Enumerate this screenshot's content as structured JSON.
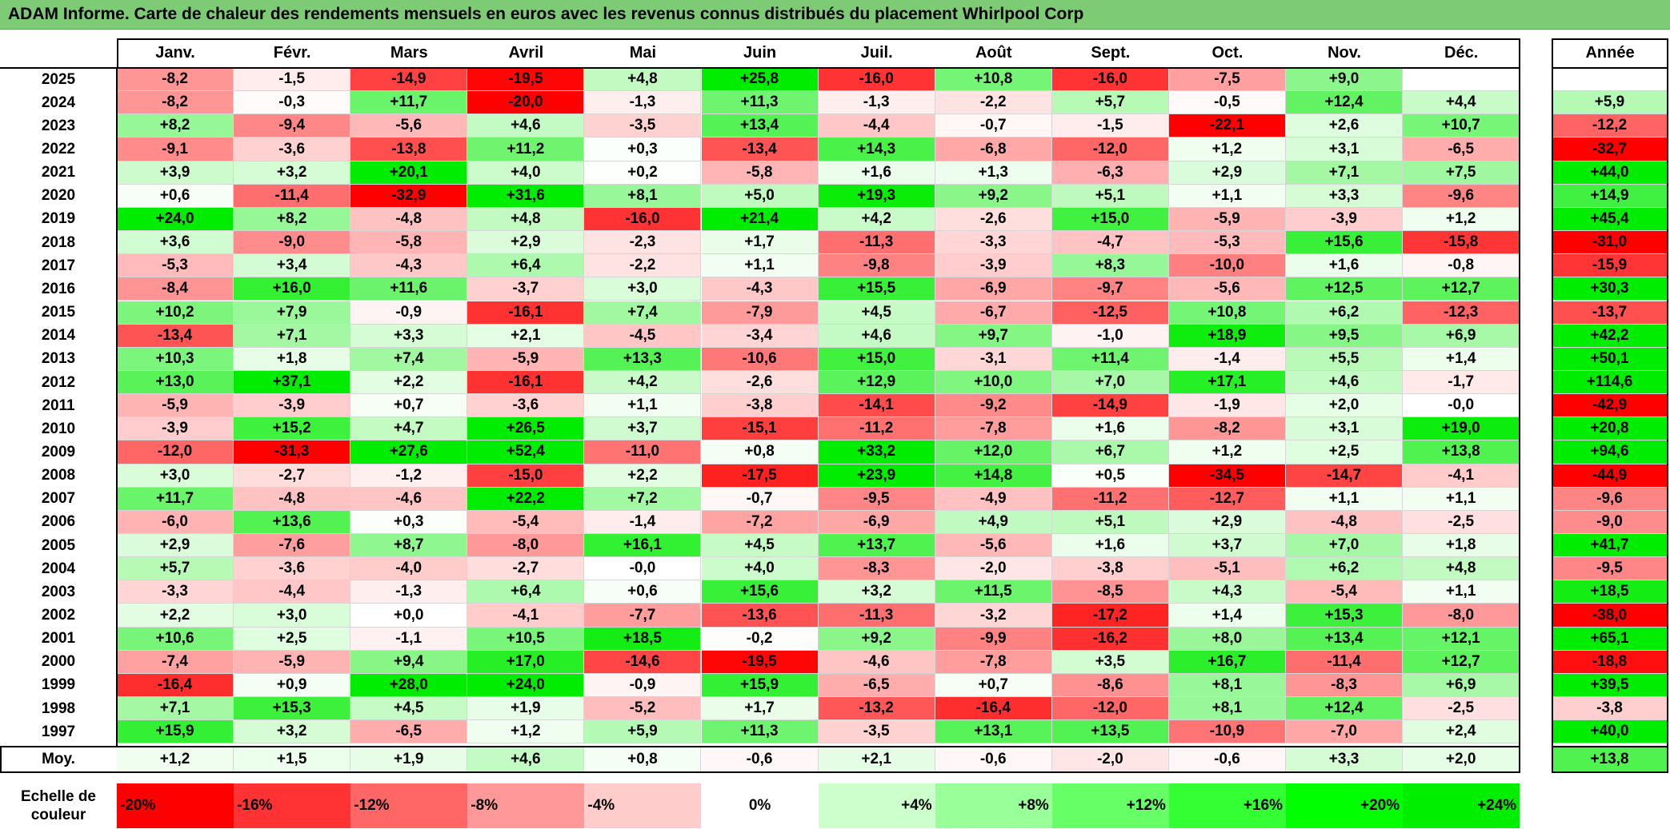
{
  "title": "ADAM Informe. Carte de chaleur des rendements mensuels en euros avec les revenus connus distribués du placement Whirlpool Corp",
  "chart_data": {
    "type": "heatmap",
    "title": "ADAM Informe. Carte de chaleur des rendements mensuels en euros avec les revenus connus distribués du placement Whirlpool Corp",
    "columns": [
      "Janv.",
      "Févr.",
      "Mars",
      "Avril",
      "Mai",
      "Juin",
      "Juil.",
      "Août",
      "Sept.",
      "Oct.",
      "Nov.",
      "Déc."
    ],
    "annual_header": "Année",
    "average_label": "Moy.",
    "rows": [
      {
        "year": "2025",
        "months": [
          "-8,2",
          "-1,5",
          "-14,9",
          "-19,5",
          "+4,8",
          "+25,8",
          "-16,0",
          "+10,8",
          "-16,0",
          "-7,5",
          "+9,0",
          ""
        ],
        "annual": ""
      },
      {
        "year": "2024",
        "months": [
          "-8,2",
          "-0,3",
          "+11,7",
          "-20,0",
          "-1,3",
          "+11,3",
          "-1,3",
          "-2,2",
          "+5,7",
          "-0,5",
          "+12,4",
          "+4,4"
        ],
        "annual": "+5,9"
      },
      {
        "year": "2023",
        "months": [
          "+8,2",
          "-9,4",
          "-5,6",
          "+4,6",
          "-3,5",
          "+13,4",
          "-4,4",
          "-0,7",
          "-1,5",
          "-22,1",
          "+2,6",
          "+10,7"
        ],
        "annual": "-12,2"
      },
      {
        "year": "2022",
        "months": [
          "-9,1",
          "-3,6",
          "-13,8",
          "+11,2",
          "+0,3",
          "-13,4",
          "+14,3",
          "-6,8",
          "-12,0",
          "+1,2",
          "+3,1",
          "-6,5"
        ],
        "annual": "-32,7"
      },
      {
        "year": "2021",
        "months": [
          "+3,9",
          "+3,2",
          "+20,1",
          "+4,0",
          "+0,2",
          "-5,8",
          "+1,6",
          "+1,3",
          "-6,3",
          "+2,9",
          "+7,1",
          "+7,5"
        ],
        "annual": "+44,0"
      },
      {
        "year": "2020",
        "months": [
          "+0,6",
          "-11,4",
          "-32,9",
          "+31,6",
          "+8,1",
          "+5,0",
          "+19,3",
          "+9,2",
          "+5,1",
          "+1,1",
          "+3,3",
          "-9,6"
        ],
        "annual": "+14,9"
      },
      {
        "year": "2019",
        "months": [
          "+24,0",
          "+8,2",
          "-4,8",
          "+4,8",
          "-16,0",
          "+21,4",
          "+4,2",
          "-2,6",
          "+15,0",
          "-5,9",
          "-3,9",
          "+1,2"
        ],
        "annual": "+45,4"
      },
      {
        "year": "2018",
        "months": [
          "+3,6",
          "-9,0",
          "-5,8",
          "+2,9",
          "-2,3",
          "+1,7",
          "-11,3",
          "-3,3",
          "-4,7",
          "-5,3",
          "+15,6",
          "-15,8"
        ],
        "annual": "-31,0"
      },
      {
        "year": "2017",
        "months": [
          "-5,3",
          "+3,4",
          "-4,3",
          "+6,4",
          "-2,2",
          "+1,1",
          "-9,8",
          "-3,9",
          "+8,3",
          "-10,0",
          "+1,6",
          "-0,8"
        ],
        "annual": "-15,9"
      },
      {
        "year": "2016",
        "months": [
          "-8,4",
          "+16,0",
          "+11,6",
          "-3,7",
          "+3,0",
          "-4,3",
          "+15,5",
          "-6,9",
          "-9,7",
          "-5,6",
          "+12,5",
          "+12,7"
        ],
        "annual": "+30,3"
      },
      {
        "year": "2015",
        "months": [
          "+10,2",
          "+7,9",
          "-0,9",
          "-16,1",
          "+7,4",
          "-7,9",
          "+4,5",
          "-6,7",
          "-12,5",
          "+10,8",
          "+6,2",
          "-12,3"
        ],
        "annual": "-13,7"
      },
      {
        "year": "2014",
        "months": [
          "-13,4",
          "+7,1",
          "+3,3",
          "+2,1",
          "-4,5",
          "-3,4",
          "+4,6",
          "+9,7",
          "-1,0",
          "+18,9",
          "+9,5",
          "+6,9"
        ],
        "annual": "+42,2"
      },
      {
        "year": "2013",
        "months": [
          "+10,3",
          "+1,8",
          "+7,4",
          "-5,9",
          "+13,3",
          "-10,6",
          "+15,0",
          "-3,1",
          "+11,4",
          "-1,4",
          "+5,5",
          "+1,4"
        ],
        "annual": "+50,1"
      },
      {
        "year": "2012",
        "months": [
          "+13,0",
          "+37,1",
          "+2,2",
          "-16,1",
          "+4,2",
          "-2,6",
          "+12,9",
          "+10,0",
          "+7,0",
          "+17,1",
          "+4,6",
          "-1,7"
        ],
        "annual": "+114,6"
      },
      {
        "year": "2011",
        "months": [
          "-5,9",
          "-3,9",
          "+0,7",
          "-3,6",
          "+1,1",
          "-3,8",
          "-14,1",
          "-9,2",
          "-14,9",
          "-1,9",
          "+2,0",
          "-0,0"
        ],
        "annual": "-42,9"
      },
      {
        "year": "2010",
        "months": [
          "-3,9",
          "+15,2",
          "+4,7",
          "+26,5",
          "+3,7",
          "-15,1",
          "-11,2",
          "-7,8",
          "+1,6",
          "-8,2",
          "+3,1",
          "+19,0"
        ],
        "annual": "+20,8"
      },
      {
        "year": "2009",
        "months": [
          "-12,0",
          "-31,3",
          "+27,6",
          "+52,4",
          "-11,0",
          "+0,8",
          "+33,2",
          "+12,0",
          "+6,7",
          "+1,2",
          "+2,5",
          "+13,8"
        ],
        "annual": "+94,6"
      },
      {
        "year": "2008",
        "months": [
          "+3,0",
          "-2,7",
          "-1,2",
          "-15,0",
          "+2,2",
          "-17,5",
          "+23,9",
          "+14,8",
          "+0,5",
          "-34,5",
          "-14,7",
          "-4,1"
        ],
        "annual": "-44,9"
      },
      {
        "year": "2007",
        "months": [
          "+11,7",
          "-4,8",
          "-4,6",
          "+22,2",
          "+7,2",
          "-0,7",
          "-9,5",
          "-4,9",
          "-11,2",
          "-12,7",
          "+1,1",
          "+1,1"
        ],
        "annual": "-9,6"
      },
      {
        "year": "2006",
        "months": [
          "-6,0",
          "+13,6",
          "+0,3",
          "-5,4",
          "-1,4",
          "-7,2",
          "-6,9",
          "+4,9",
          "+5,1",
          "+2,9",
          "-4,8",
          "-2,5"
        ],
        "annual": "-9,0"
      },
      {
        "year": "2005",
        "months": [
          "+2,9",
          "-7,6",
          "+8,7",
          "-8,0",
          "+16,1",
          "+4,5",
          "+13,7",
          "-5,6",
          "+1,6",
          "+3,7",
          "+7,0",
          "+1,8"
        ],
        "annual": "+41,7"
      },
      {
        "year": "2004",
        "months": [
          "+5,7",
          "-3,6",
          "-4,0",
          "-2,7",
          "-0,0",
          "+4,0",
          "-8,3",
          "-2,0",
          "-3,8",
          "-5,1",
          "+6,2",
          "+4,8"
        ],
        "annual": "-9,5"
      },
      {
        "year": "2003",
        "months": [
          "-3,3",
          "-4,4",
          "-1,3",
          "+6,4",
          "+0,6",
          "+15,6",
          "+3,2",
          "+11,5",
          "-8,5",
          "+4,3",
          "-5,4",
          "+1,1"
        ],
        "annual": "+18,5"
      },
      {
        "year": "2002",
        "months": [
          "+2,2",
          "+3,0",
          "+0,0",
          "-4,1",
          "-7,7",
          "-13,6",
          "-11,3",
          "-3,2",
          "-17,2",
          "+1,4",
          "+15,3",
          "-8,0"
        ],
        "annual": "-38,0"
      },
      {
        "year": "2001",
        "months": [
          "+10,6",
          "+2,5",
          "-1,1",
          "+10,5",
          "+18,5",
          "-0,2",
          "+9,2",
          "-9,9",
          "-16,2",
          "+8,0",
          "+13,4",
          "+12,1"
        ],
        "annual": "+65,1"
      },
      {
        "year": "2000",
        "months": [
          "-7,4",
          "-5,9",
          "+9,4",
          "+17,0",
          "-14,6",
          "-19,5",
          "-4,6",
          "-7,8",
          "+3,5",
          "+16,7",
          "-11,4",
          "+12,7"
        ],
        "annual": "-18,8"
      },
      {
        "year": "1999",
        "months": [
          "-16,4",
          "+0,9",
          "+28,0",
          "+24,0",
          "-0,9",
          "+15,9",
          "-6,5",
          "+0,7",
          "-8,6",
          "+8,1",
          "-8,3",
          "+6,9"
        ],
        "annual": "+39,5"
      },
      {
        "year": "1998",
        "months": [
          "+7,1",
          "+15,3",
          "+4,5",
          "+1,9",
          "-5,2",
          "+1,7",
          "-13,2",
          "-16,4",
          "-12,0",
          "+8,1",
          "+12,4",
          "-2,5"
        ],
        "annual": "-3,8"
      },
      {
        "year": "1997",
        "months": [
          "+15,9",
          "+3,2",
          "-6,5",
          "+1,2",
          "+5,9",
          "+11,3",
          "-3,5",
          "+13,1",
          "+13,5",
          "-10,9",
          "-7,0",
          "+2,4"
        ],
        "annual": "+40,0"
      }
    ],
    "averages": {
      "months": [
        "+1,2",
        "+1,5",
        "+1,9",
        "+4,6",
        "+0,8",
        "-0,6",
        "+2,1",
        "-0,6",
        "-2,0",
        "-0,6",
        "+3,3",
        "+2,0"
      ],
      "annual": "+13,8"
    },
    "scale_label": "Echelle de couleur",
    "scale": [
      {
        "label": "-20%",
        "value": -20,
        "color": "#ff0000"
      },
      {
        "label": "-16%",
        "value": -16,
        "color": "#ff3333"
      },
      {
        "label": "-12%",
        "value": -12,
        "color": "#ff6666"
      },
      {
        "label": "-8%",
        "value": -8,
        "color": "#ff9999"
      },
      {
        "label": "-4%",
        "value": -4,
        "color": "#ffcccc"
      },
      {
        "label": "0%",
        "value": 0,
        "color": "#ffffff"
      },
      {
        "label": "+4%",
        "value": 4,
        "color": "#ccffcc"
      },
      {
        "label": "+8%",
        "value": 8,
        "color": "#99ff99"
      },
      {
        "label": "+12%",
        "value": 12,
        "color": "#66ff66"
      },
      {
        "label": "+16%",
        "value": 16,
        "color": "#33ff33"
      },
      {
        "label": "+20%",
        "value": 20,
        "color": "#00ff00"
      },
      {
        "label": "+24%",
        "value": 24,
        "color": "#00ee00"
      }
    ],
    "colors": {
      "title_bar": "#7dcb74",
      "negative_max": "#ff0000",
      "positive_max": "#00ee00",
      "neutral": "#ffffff"
    }
  }
}
